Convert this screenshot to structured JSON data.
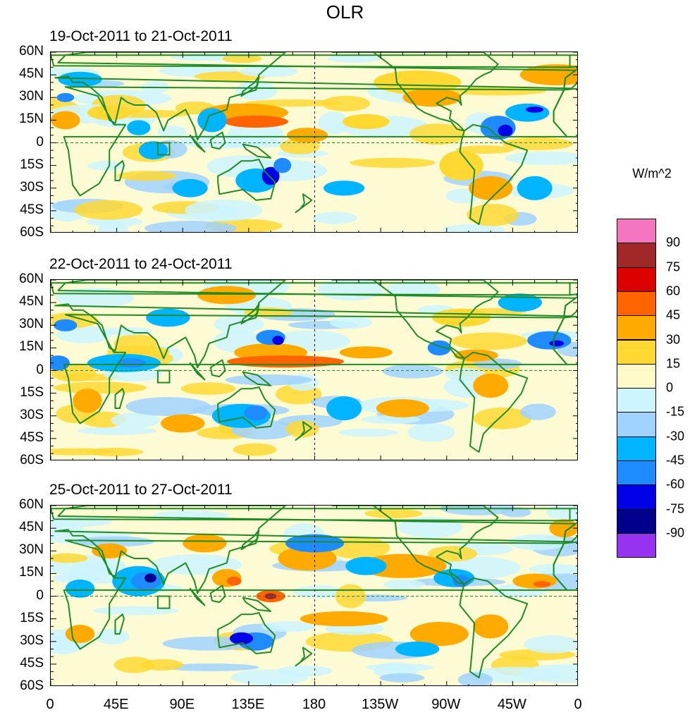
{
  "title": "OLR",
  "units": "W/m^2",
  "panels": [
    {
      "title": "19-Oct-2011 to 21-Oct-2011"
    },
    {
      "title": "22-Oct-2011 to 24-Oct-2011"
    },
    {
      "title": "25-Oct-2011 to 27-Oct-2011"
    }
  ],
  "lat_labels": [
    "60N",
    "45N",
    "30N",
    "15N",
    "0",
    "15S",
    "30S",
    "45S",
    "60S"
  ],
  "lon_labels": [
    "0",
    "45E",
    "90E",
    "135E",
    "180",
    "135W",
    "90W",
    "45W",
    "0"
  ],
  "colorbar": {
    "labels": [
      "90",
      "75",
      "60",
      "45",
      "30",
      "15",
      "0",
      "-15",
      "-30",
      "-45",
      "-60",
      "-75",
      "-90"
    ],
    "colors": [
      "#f576c0",
      "#a02828",
      "#dc0000",
      "#ff6400",
      "#ffaa00",
      "#ffd832",
      "#fffac8",
      "#cdf5ff",
      "#a0d2ff",
      "#00b4ff",
      "#1e8cff",
      "#0000e6",
      "#00008c",
      "#9632f0"
    ]
  },
  "colors": {
    "land_outline": "#1f8b24",
    "equator": "#1f8b24",
    "dateline": "#000000"
  }
}
